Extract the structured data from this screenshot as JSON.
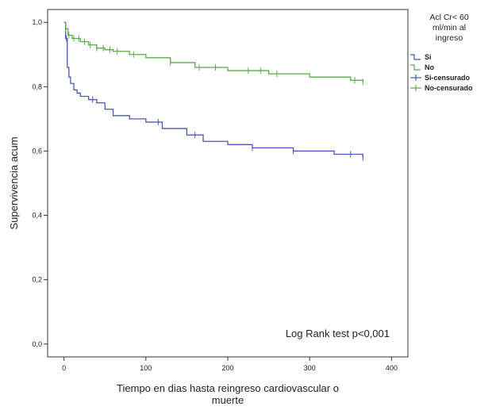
{
  "chart_data": {
    "type": "line",
    "title": "",
    "xlabel": "Tiempo en dias hasta reingreso cardiovascular o muerte",
    "ylabel": "Supervivencia acum",
    "xlim": [
      -20,
      420
    ],
    "ylim": [
      -0.04,
      1.04
    ],
    "x_ticks": [
      "0",
      "100",
      "200",
      "300",
      "400"
    ],
    "y_ticks": [
      "0,0",
      "0,2",
      "0,4",
      "0,6",
      "0,8",
      "1,0"
    ],
    "annotation": "Log Rank test p<0,001",
    "grid": false,
    "legend": {
      "title": "Acl Cr< 60 ml/min al ingreso",
      "placement": "right",
      "entries": [
        "Si",
        "No",
        "Si-censurado",
        "No-censurado"
      ]
    },
    "series": [
      {
        "name": "Si",
        "color": "#4a58b8",
        "x": [
          0,
          2,
          4,
          6,
          8,
          12,
          16,
          20,
          30,
          40,
          50,
          60,
          80,
          100,
          120,
          150,
          170,
          200,
          230,
          280,
          330,
          365
        ],
        "y": [
          1.0,
          0.95,
          0.86,
          0.83,
          0.81,
          0.79,
          0.78,
          0.77,
          0.76,
          0.75,
          0.73,
          0.71,
          0.7,
          0.69,
          0.67,
          0.65,
          0.63,
          0.62,
          0.61,
          0.6,
          0.59,
          0.58
        ],
        "censored_x": [
          3,
          35,
          115,
          160,
          230,
          280,
          350,
          365
        ]
      },
      {
        "name": "No",
        "color": "#5aab4a",
        "x": [
          0,
          2,
          5,
          10,
          20,
          30,
          40,
          50,
          60,
          80,
          100,
          130,
          160,
          200,
          250,
          300,
          350,
          365
        ],
        "y": [
          1.0,
          0.98,
          0.96,
          0.95,
          0.94,
          0.93,
          0.92,
          0.915,
          0.91,
          0.9,
          0.89,
          0.875,
          0.86,
          0.85,
          0.84,
          0.83,
          0.82,
          0.815
        ],
        "censored_x": [
          2,
          6,
          12,
          18,
          25,
          32,
          40,
          48,
          56,
          65,
          85,
          130,
          165,
          185,
          225,
          240,
          260,
          355,
          365
        ]
      }
    ]
  }
}
